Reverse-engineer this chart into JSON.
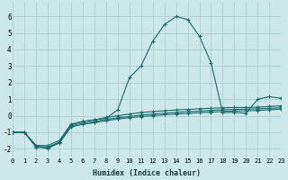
{
  "xlabel": "Humidex (Indice chaleur)",
  "background_color": "#cce8e8",
  "line_color": "#1a6b6b",
  "grid_color": "#aacfcf",
  "x_values": [
    0,
    1,
    2,
    3,
    4,
    5,
    6,
    7,
    8,
    9,
    10,
    11,
    12,
    13,
    14,
    15,
    16,
    17,
    18,
    19,
    20,
    21,
    22,
    23
  ],
  "series1": [
    -1.0,
    -1.0,
    -1.8,
    -2.0,
    -1.6,
    -0.55,
    -0.35,
    -0.25,
    -0.15,
    0.35,
    2.3,
    3.0,
    4.5,
    5.5,
    6.0,
    5.8,
    4.8,
    3.2,
    0.2,
    0.2,
    0.15,
    1.0,
    1.15,
    1.05
  ],
  "series2": [
    -1.0,
    -1.0,
    -1.8,
    -1.8,
    -1.5,
    -0.5,
    -0.35,
    -0.25,
    -0.1,
    0.0,
    0.1,
    0.2,
    0.25,
    0.3,
    0.35,
    0.38,
    0.42,
    0.45,
    0.48,
    0.5,
    0.5,
    0.52,
    0.56,
    0.6
  ],
  "series3": [
    -1.0,
    -1.0,
    -1.85,
    -1.9,
    -1.6,
    -0.62,
    -0.45,
    -0.35,
    -0.22,
    -0.12,
    -0.05,
    0.05,
    0.1,
    0.15,
    0.2,
    0.25,
    0.28,
    0.32,
    0.36,
    0.38,
    0.4,
    0.42,
    0.45,
    0.48
  ],
  "series4": [
    -1.0,
    -1.0,
    -1.9,
    -1.95,
    -1.65,
    -0.68,
    -0.52,
    -0.42,
    -0.3,
    -0.2,
    -0.12,
    -0.05,
    0.0,
    0.06,
    0.1,
    0.14,
    0.18,
    0.22,
    0.26,
    0.28,
    0.3,
    0.32,
    0.36,
    0.4
  ],
  "ylim": [
    -2.5,
    6.8
  ],
  "xlim": [
    0,
    23
  ],
  "yticks": [
    -2,
    -1,
    0,
    1,
    2,
    3,
    4,
    5,
    6
  ],
  "xticks": [
    0,
    1,
    2,
    3,
    4,
    5,
    6,
    7,
    8,
    9,
    10,
    11,
    12,
    13,
    14,
    15,
    16,
    17,
    18,
    19,
    20,
    21,
    22,
    23
  ]
}
